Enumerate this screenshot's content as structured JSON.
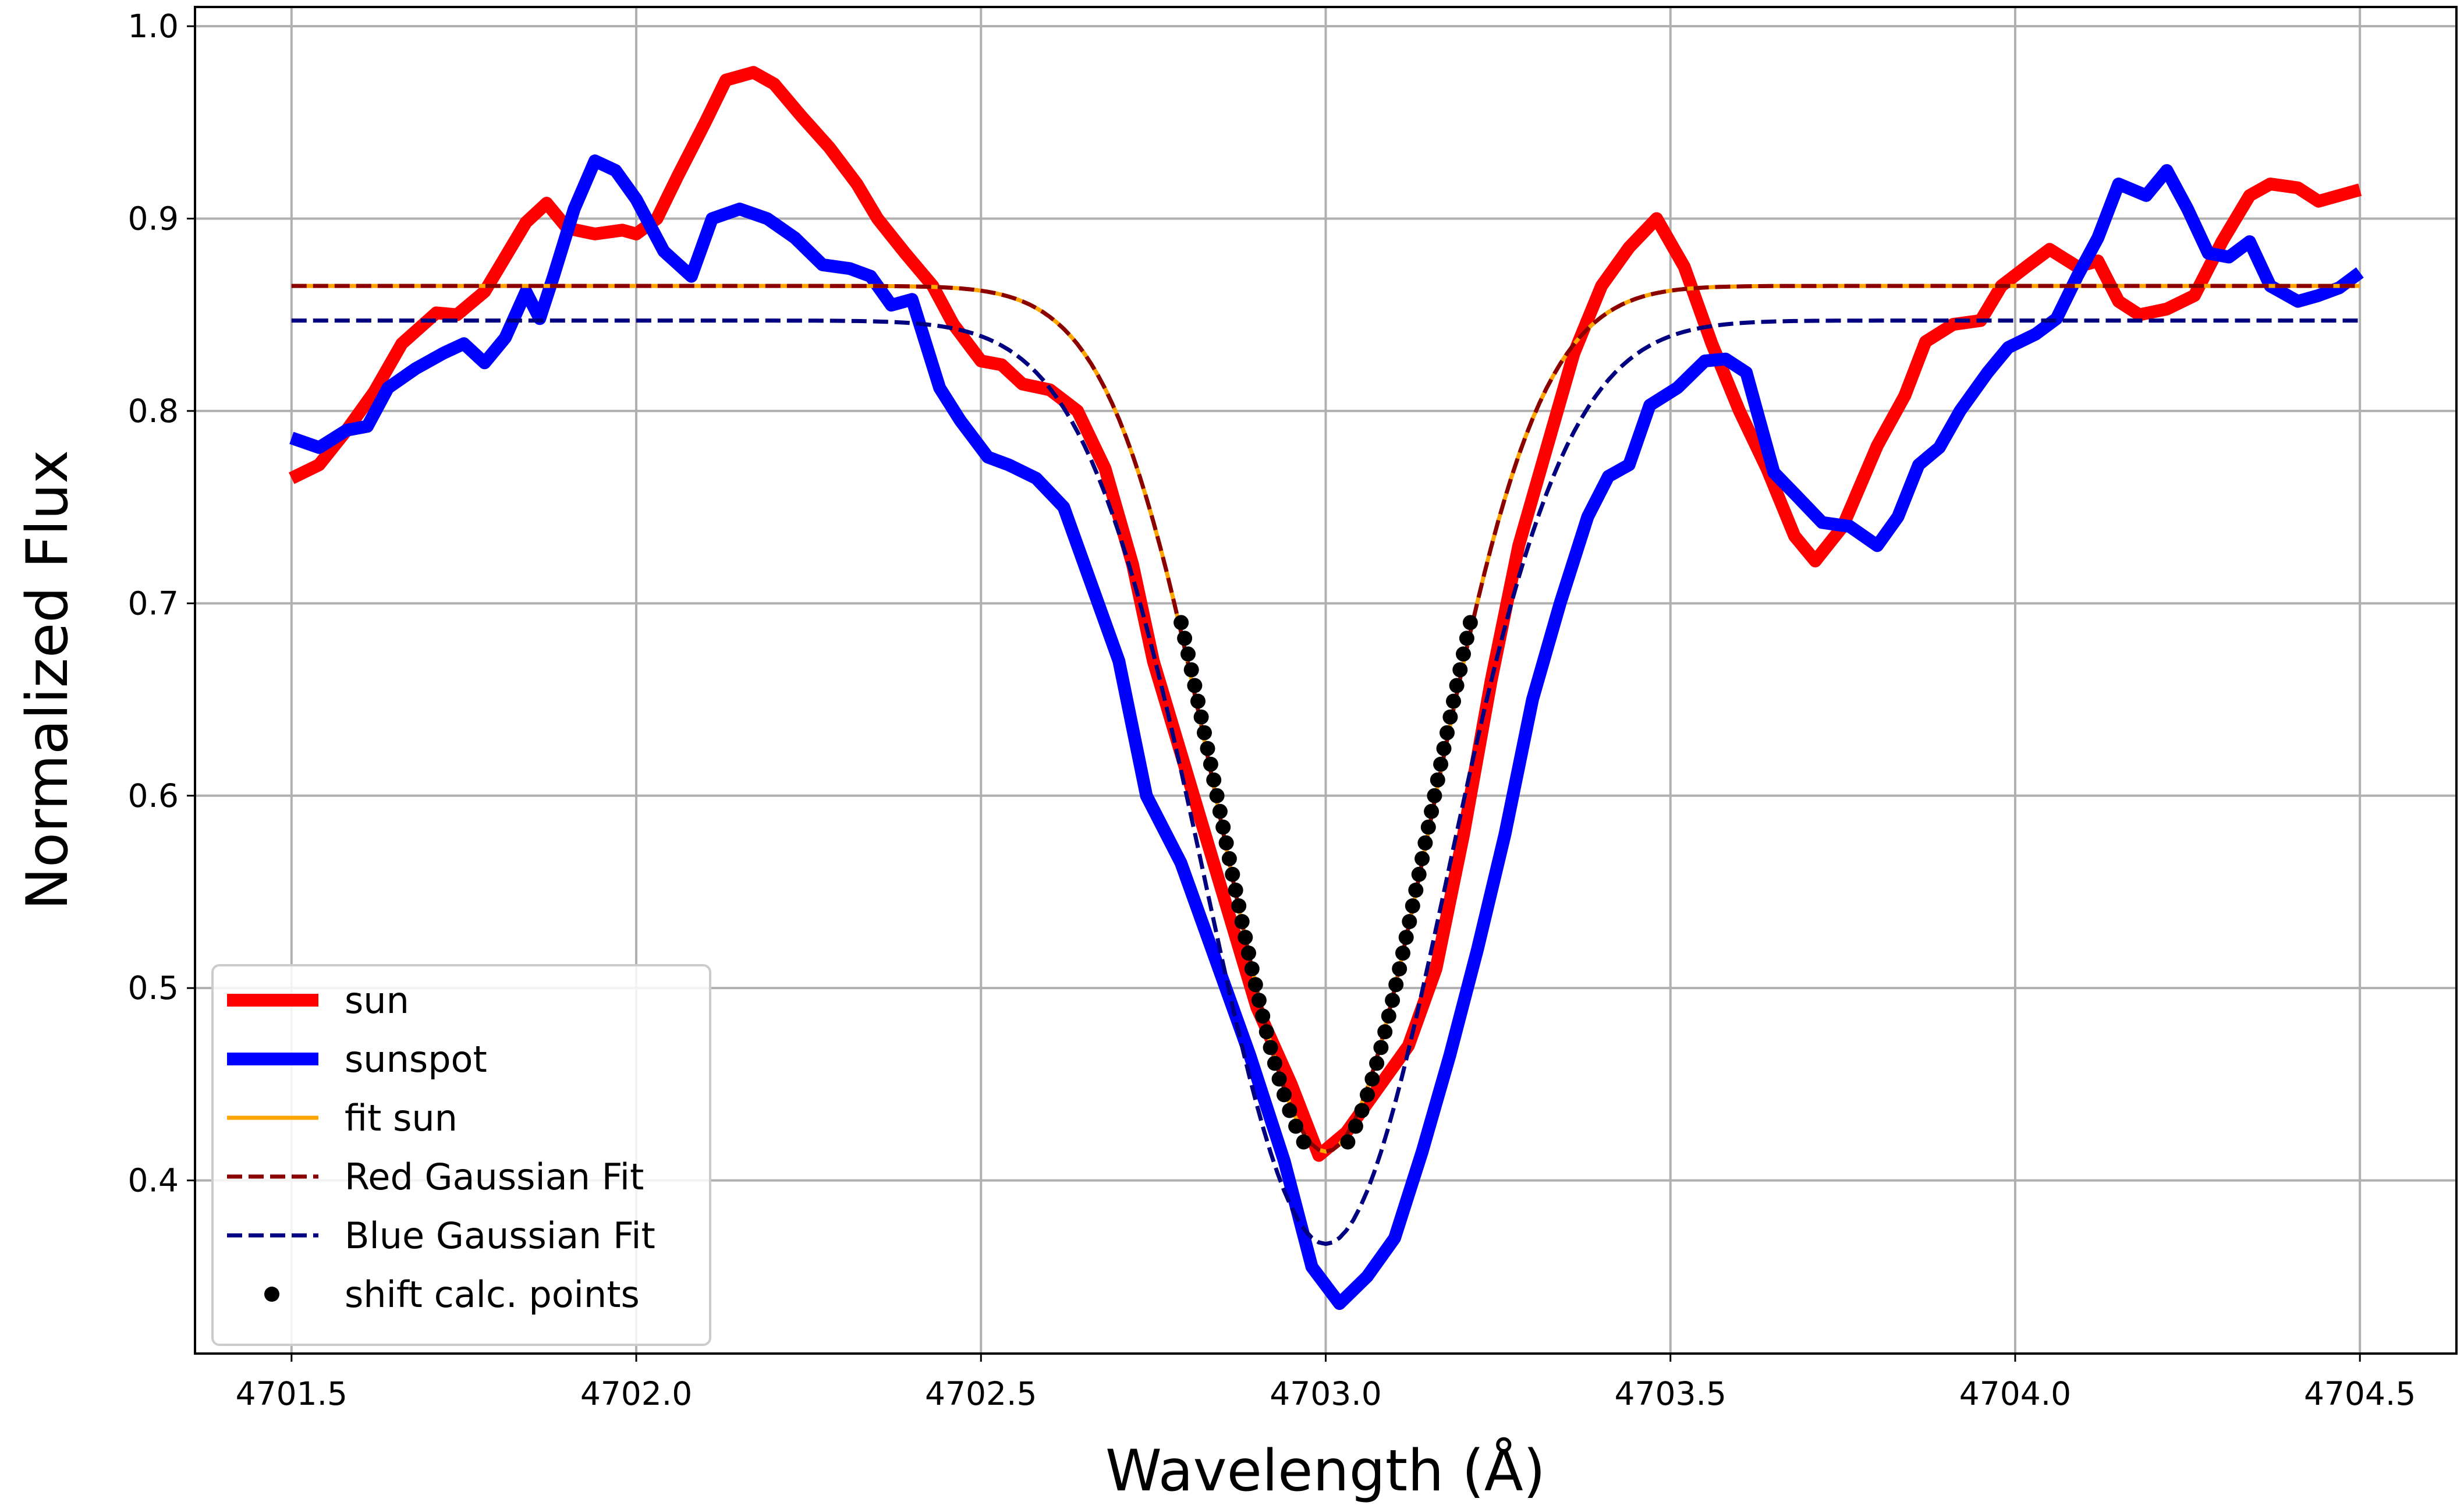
{
  "chart_data": {
    "type": "line",
    "title": "",
    "xlabel": "Wavelength (Å)",
    "ylabel": "Normalized Flux",
    "xlim": [
      4701.36,
      4704.64
    ],
    "ylim": [
      0.31,
      1.01
    ],
    "xticks": [
      4701.5,
      4702.0,
      4702.5,
      4703.0,
      4703.5,
      4704.0,
      4704.5
    ],
    "xtick_labels": [
      "4701.5",
      "4702.0",
      "4702.5",
      "4703.0",
      "4703.5",
      "4704.0",
      "4704.5"
    ],
    "yticks": [
      0.4,
      0.5,
      0.6,
      0.7,
      0.8,
      0.9,
      1.0
    ],
    "ytick_labels": [
      "0.4",
      "0.5",
      "0.6",
      "0.7",
      "0.8",
      "0.9",
      "1.0"
    ],
    "grid": true,
    "legend_position": "lower-left",
    "series": [
      {
        "name": "sun",
        "color": "#ff0000",
        "style": "solid-thick",
        "points": [
          [
            4701.5,
            0.765
          ],
          [
            4701.54,
            0.772
          ],
          [
            4701.58,
            0.79
          ],
          [
            4701.62,
            0.81
          ],
          [
            4701.66,
            0.835
          ],
          [
            4701.71,
            0.851
          ],
          [
            4701.74,
            0.85
          ],
          [
            4701.78,
            0.862
          ],
          [
            4701.81,
            0.88
          ],
          [
            4701.84,
            0.898
          ],
          [
            4701.87,
            0.908
          ],
          [
            4701.9,
            0.895
          ],
          [
            4701.94,
            0.892
          ],
          [
            4701.98,
            0.894
          ],
          [
            4702.0,
            0.892
          ],
          [
            4702.03,
            0.9
          ],
          [
            4702.06,
            0.922
          ],
          [
            4702.1,
            0.95
          ],
          [
            4702.13,
            0.972
          ],
          [
            4702.17,
            0.976
          ],
          [
            4702.2,
            0.97
          ],
          [
            4702.24,
            0.953
          ],
          [
            4702.28,
            0.937
          ],
          [
            4702.32,
            0.918
          ],
          [
            4702.35,
            0.9
          ],
          [
            4702.39,
            0.882
          ],
          [
            4702.43,
            0.865
          ],
          [
            4702.46,
            0.845
          ],
          [
            4702.5,
            0.826
          ],
          [
            4702.53,
            0.824
          ],
          [
            4702.56,
            0.814
          ],
          [
            4702.6,
            0.811
          ],
          [
            4702.64,
            0.8
          ],
          [
            4702.68,
            0.77
          ],
          [
            4702.72,
            0.72
          ],
          [
            4702.75,
            0.67
          ],
          [
            4702.8,
            0.61
          ],
          [
            4702.85,
            0.55
          ],
          [
            4702.9,
            0.49
          ],
          [
            4702.95,
            0.45
          ],
          [
            4702.99,
            0.413
          ],
          [
            4703.03,
            0.425
          ],
          [
            4703.07,
            0.445
          ],
          [
            4703.12,
            0.47
          ],
          [
            4703.16,
            0.51
          ],
          [
            4703.2,
            0.58
          ],
          [
            4703.24,
            0.66
          ],
          [
            4703.28,
            0.73
          ],
          [
            4703.32,
            0.78
          ],
          [
            4703.36,
            0.83
          ],
          [
            4703.4,
            0.865
          ],
          [
            4703.44,
            0.885
          ],
          [
            4703.48,
            0.9
          ],
          [
            4703.52,
            0.875
          ],
          [
            4703.56,
            0.835
          ],
          [
            4703.6,
            0.8
          ],
          [
            4703.64,
            0.77
          ],
          [
            4703.68,
            0.735
          ],
          [
            4703.71,
            0.722
          ],
          [
            4703.75,
            0.74
          ],
          [
            4703.8,
            0.782
          ],
          [
            4703.84,
            0.808
          ],
          [
            4703.87,
            0.836
          ],
          [
            4703.91,
            0.845
          ],
          [
            4703.95,
            0.847
          ],
          [
            4703.98,
            0.865
          ],
          [
            4704.02,
            0.876
          ],
          [
            4704.05,
            0.884
          ],
          [
            4704.09,
            0.875
          ],
          [
            4704.12,
            0.878
          ],
          [
            4704.15,
            0.857
          ],
          [
            4704.18,
            0.85
          ],
          [
            4704.22,
            0.853
          ],
          [
            4704.26,
            0.86
          ],
          [
            4704.3,
            0.888
          ],
          [
            4704.34,
            0.912
          ],
          [
            4704.37,
            0.918
          ],
          [
            4704.41,
            0.916
          ],
          [
            4704.44,
            0.909
          ],
          [
            4704.47,
            0.912
          ],
          [
            4704.5,
            0.915
          ]
        ]
      },
      {
        "name": "sunspot",
        "color": "#0000ff",
        "style": "solid-thick",
        "points": [
          [
            4701.5,
            0.786
          ],
          [
            4701.54,
            0.781
          ],
          [
            4701.58,
            0.79
          ],
          [
            4701.61,
            0.792
          ],
          [
            4701.64,
            0.812
          ],
          [
            4701.68,
            0.822
          ],
          [
            4701.72,
            0.83
          ],
          [
            4701.75,
            0.835
          ],
          [
            4701.78,
            0.825
          ],
          [
            4701.81,
            0.838
          ],
          [
            4701.84,
            0.862
          ],
          [
            4701.86,
            0.848
          ],
          [
            4701.88,
            0.87
          ],
          [
            4701.91,
            0.905
          ],
          [
            4701.94,
            0.93
          ],
          [
            4701.97,
            0.925
          ],
          [
            4702.0,
            0.91
          ],
          [
            4702.04,
            0.883
          ],
          [
            4702.08,
            0.87
          ],
          [
            4702.11,
            0.9
          ],
          [
            4702.15,
            0.905
          ],
          [
            4702.19,
            0.9
          ],
          [
            4702.23,
            0.89
          ],
          [
            4702.27,
            0.876
          ],
          [
            4702.31,
            0.874
          ],
          [
            4702.34,
            0.87
          ],
          [
            4702.37,
            0.855
          ],
          [
            4702.4,
            0.858
          ],
          [
            4702.44,
            0.812
          ],
          [
            4702.47,
            0.795
          ],
          [
            4702.51,
            0.776
          ],
          [
            4702.54,
            0.772
          ],
          [
            4702.58,
            0.765
          ],
          [
            4702.62,
            0.75
          ],
          [
            4702.66,
            0.71
          ],
          [
            4702.7,
            0.67
          ],
          [
            4702.74,
            0.6
          ],
          [
            4702.79,
            0.565
          ],
          [
            4702.84,
            0.515
          ],
          [
            4702.89,
            0.465
          ],
          [
            4702.94,
            0.41
          ],
          [
            4702.98,
            0.355
          ],
          [
            4703.02,
            0.336
          ],
          [
            4703.06,
            0.35
          ],
          [
            4703.1,
            0.37
          ],
          [
            4703.14,
            0.415
          ],
          [
            4703.18,
            0.465
          ],
          [
            4703.22,
            0.52
          ],
          [
            4703.26,
            0.58
          ],
          [
            4703.3,
            0.65
          ],
          [
            4703.34,
            0.7
          ],
          [
            4703.38,
            0.745
          ],
          [
            4703.41,
            0.766
          ],
          [
            4703.44,
            0.772
          ],
          [
            4703.47,
            0.803
          ],
          [
            4703.51,
            0.812
          ],
          [
            4703.55,
            0.826
          ],
          [
            4703.58,
            0.827
          ],
          [
            4703.61,
            0.82
          ],
          [
            4703.65,
            0.768
          ],
          [
            4703.68,
            0.757
          ],
          [
            4703.72,
            0.742
          ],
          [
            4703.76,
            0.74
          ],
          [
            4703.8,
            0.73
          ],
          [
            4703.83,
            0.745
          ],
          [
            4703.86,
            0.772
          ],
          [
            4703.89,
            0.781
          ],
          [
            4703.92,
            0.8
          ],
          [
            4703.96,
            0.82
          ],
          [
            4703.99,
            0.833
          ],
          [
            4704.03,
            0.84
          ],
          [
            4704.06,
            0.848
          ],
          [
            4704.09,
            0.87
          ],
          [
            4704.12,
            0.89
          ],
          [
            4704.15,
            0.918
          ],
          [
            4704.19,
            0.912
          ],
          [
            4704.22,
            0.925
          ],
          [
            4704.25,
            0.905
          ],
          [
            4704.28,
            0.882
          ],
          [
            4704.31,
            0.88
          ],
          [
            4704.34,
            0.888
          ],
          [
            4704.37,
            0.865
          ],
          [
            4704.41,
            0.857
          ],
          [
            4704.44,
            0.86
          ],
          [
            4704.47,
            0.864
          ],
          [
            4704.5,
            0.872
          ]
        ]
      },
      {
        "name": "fit sun",
        "color": "#ffa500",
        "style": "solid-thin",
        "gaussian": {
          "baseline": 0.865,
          "depth": 0.45,
          "center": 4703.0,
          "sigma": 0.155
        }
      },
      {
        "name": "Red Gaussian Fit",
        "color": "#8b0000",
        "style": "dashed",
        "gaussian": {
          "baseline": 0.865,
          "depth": 0.45,
          "center": 4703.0,
          "sigma": 0.155
        }
      },
      {
        "name": "Blue Gaussian Fit",
        "color": "#000080",
        "style": "dashed",
        "gaussian": {
          "baseline": 0.847,
          "depth": 0.48,
          "center": 4703.0,
          "sigma": 0.175
        }
      },
      {
        "name": "shift calc. points",
        "color": "#000000",
        "style": "dots",
        "gaussian": {
          "baseline": 0.866,
          "depth": 0.456,
          "center": 4703.0,
          "sigma": 0.152
        },
        "fit_range": [
          0.42,
          0.69
        ],
        "points_per_side": 34
      }
    ]
  }
}
